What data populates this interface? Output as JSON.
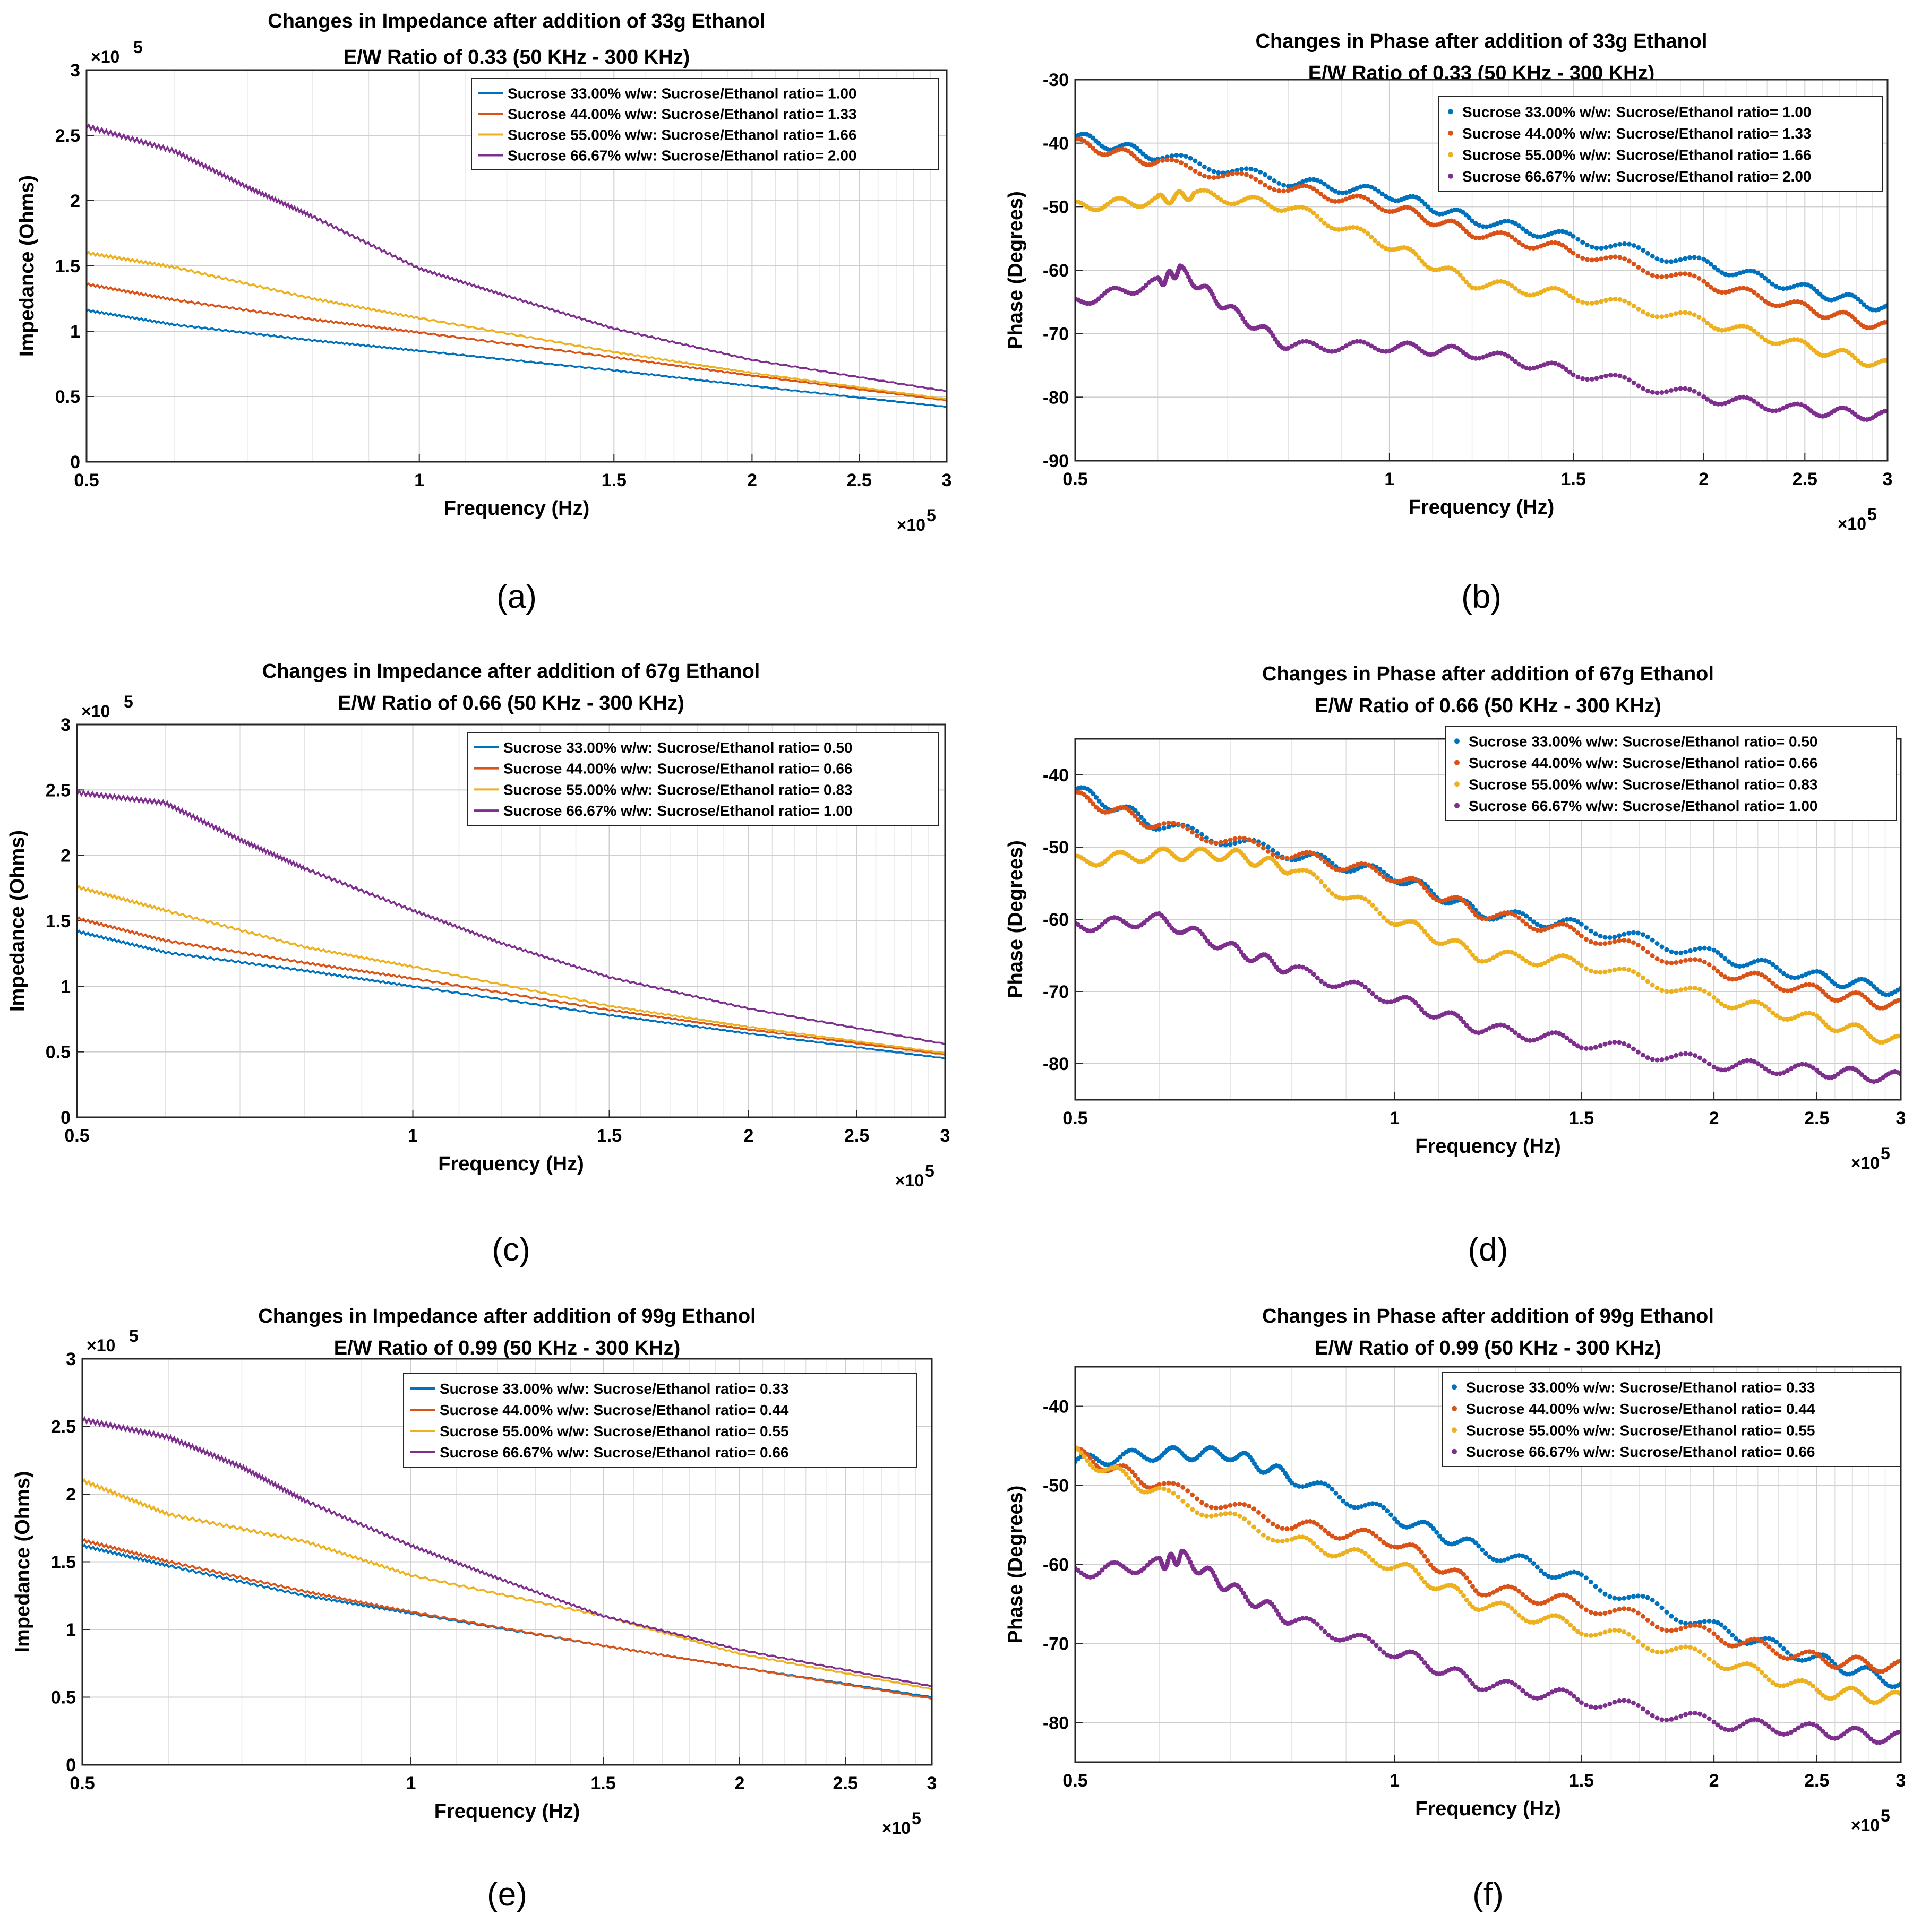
{
  "chart_data": [
    {
      "panel": "a",
      "type": "line",
      "caption": "(a)",
      "title_line1": "Changes in Impedance after addition of 33g Ethanol",
      "title_line2": "E/W Ratio of 0.33 (50 KHz - 300 KHz)",
      "xlabel": "Frequency (Hz)",
      "ylabel": "Impedance (Ohms)",
      "x_multiplier": "×10",
      "x_exponent": "5",
      "y_multiplier": "×10",
      "y_exponent": "5",
      "xscale": "log",
      "xlim": [
        0.5,
        3
      ],
      "ylim": [
        0,
        3
      ],
      "xticks": [
        0.5,
        1,
        1.5,
        2,
        2.5,
        3
      ],
      "xtick_labels": [
        "0.5",
        "1",
        "1.5",
        "2",
        "2.5",
        "3"
      ],
      "yticks": [
        0,
        0.5,
        1,
        1.5,
        2,
        2.5,
        3
      ],
      "ytick_labels": [
        "0",
        "0.5",
        "1",
        "1.5",
        "2",
        "2.5",
        "3"
      ],
      "legend_position": "top-right",
      "series": [
        {
          "name": "Sucrose 33.00% w/w: Sucrose/Ethanol ratio= 1.00",
          "color": "#0072BD",
          "x": [
            0.5,
            0.6,
            0.8,
            1.0,
            1.5,
            2.0,
            3.0
          ],
          "y": [
            1.16,
            1.05,
            0.93,
            0.85,
            0.7,
            0.58,
            0.42
          ]
        },
        {
          "name": "Sucrose 44.00% w/w: Sucrose/Ethanol ratio= 1.33",
          "color": "#D95319",
          "x": [
            0.5,
            0.6,
            0.8,
            1.0,
            1.5,
            2.0,
            3.0
          ],
          "y": [
            1.36,
            1.24,
            1.09,
            0.99,
            0.8,
            0.66,
            0.47
          ]
        },
        {
          "name": "Sucrose 55.00% w/w: Sucrose/Ethanol ratio= 1.66",
          "color": "#EDB120",
          "x": [
            0.5,
            0.6,
            0.8,
            1.0,
            1.5,
            2.0,
            3.0
          ],
          "y": [
            1.6,
            1.49,
            1.25,
            1.1,
            0.84,
            0.68,
            0.48
          ]
        },
        {
          "name": "Sucrose 66.67% w/w: Sucrose/Ethanol ratio= 2.00",
          "color": "#7E2F8E",
          "x": [
            0.5,
            0.6,
            0.7,
            0.8,
            1.0,
            1.2,
            1.5,
            2.0,
            3.0
          ],
          "y": [
            2.57,
            2.38,
            2.1,
            1.88,
            1.48,
            1.27,
            1.02,
            0.78,
            0.54
          ]
        }
      ]
    },
    {
      "panel": "b",
      "type": "scatter",
      "caption": "(b)",
      "title_line1": "Changes in Phase after addition of 33g Ethanol",
      "title_line2": "E/W Ratio of 0.33 (50 KHz - 300 KHz)",
      "xlabel": "Frequency (Hz)",
      "ylabel": "Phase (Degrees)",
      "x_multiplier": "×10",
      "x_exponent": "5",
      "xscale": "log",
      "xlim": [
        0.5,
        3
      ],
      "ylim": [
        -90,
        -30
      ],
      "xticks": [
        0.5,
        1,
        1.5,
        2,
        2.5,
        3
      ],
      "xtick_labels": [
        "0.5",
        "1",
        "1.5",
        "2",
        "2.5",
        "3"
      ],
      "yticks": [
        -90,
        -80,
        -70,
        -60,
        -50,
        -40,
        -30
      ],
      "ytick_labels": [
        "-90",
        "-80",
        "-70",
        "-60",
        "-50",
        "-40",
        "-30"
      ],
      "legend_position": "top-right",
      "series": [
        {
          "name": "Sucrose 33.00% w/w: Sucrose/Ethanol ratio= 1.00",
          "color": "#0072BD",
          "x": [
            0.5,
            0.6,
            0.8,
            1.0,
            1.2,
            1.5,
            2.0,
            2.5,
            3.0
          ],
          "y": [
            -39,
            -42,
            -46,
            -48,
            -52,
            -55,
            -59,
            -63,
            -66
          ]
        },
        {
          "name": "Sucrose 44.00% w/w: Sucrose/Ethanol ratio= 1.33",
          "color": "#D95319",
          "x": [
            0.5,
            0.6,
            0.8,
            1.0,
            1.2,
            1.5,
            2.0,
            2.5,
            3.0
          ],
          "y": [
            -40,
            -43,
            -47,
            -50,
            -54,
            -57,
            -62,
            -66,
            -69
          ]
        },
        {
          "name": "Sucrose 55.00% w/w: Sucrose/Ethanol ratio= 1.66",
          "color": "#EDB120",
          "x": [
            0.5,
            0.6,
            0.65,
            0.8,
            1.0,
            1.2,
            1.5,
            2.0,
            2.5,
            3.0
          ],
          "y": [
            -50,
            -49,
            -48,
            -50,
            -56,
            -62,
            -64,
            -68,
            -72,
            -75
          ]
        },
        {
          "name": "Sucrose 66.67% w/w: Sucrose/Ethanol ratio= 2.00",
          "color": "#7E2F8E",
          "x": [
            0.5,
            0.6,
            0.63,
            0.7,
            0.8,
            1.0,
            1.2,
            1.5,
            2.0,
            2.5,
            3.0
          ],
          "y": [
            -65,
            -62,
            -60,
            -66,
            -72,
            -72,
            -73,
            -76,
            -80,
            -82,
            -83
          ]
        }
      ]
    },
    {
      "panel": "c",
      "type": "line",
      "caption": "(c)",
      "title_line1": "Changes in Impedance after addition of 67g Ethanol",
      "title_line2": "E/W Ratio of 0.66 (50 KHz - 300 KHz)",
      "xlabel": "Frequency (Hz)",
      "ylabel": "Impedance (Ohms)",
      "x_multiplier": "×10",
      "x_exponent": "5",
      "y_multiplier": "×10",
      "y_exponent": "5",
      "xscale": "log",
      "xlim": [
        0.5,
        3
      ],
      "ylim": [
        0,
        3
      ],
      "xticks": [
        0.5,
        1,
        1.5,
        2,
        2.5,
        3
      ],
      "xtick_labels": [
        "0.5",
        "1",
        "1.5",
        "2",
        "2.5",
        "3"
      ],
      "yticks": [
        0,
        0.5,
        1,
        1.5,
        2,
        2.5,
        3
      ],
      "ytick_labels": [
        "0",
        "0.5",
        "1",
        "1.5",
        "2",
        "2.5",
        "3"
      ],
      "legend_position": "top-right",
      "series": [
        {
          "name": "Sucrose 33.00% w/w: Sucrose/Ethanol ratio= 0.50",
          "color": "#0072BD",
          "x": [
            0.5,
            0.6,
            0.8,
            1.0,
            1.5,
            2.0,
            3.0
          ],
          "y": [
            1.42,
            1.26,
            1.12,
            1.0,
            0.78,
            0.64,
            0.45
          ]
        },
        {
          "name": "Sucrose 44.00% w/w: Sucrose/Ethanol ratio= 0.66",
          "color": "#D95319",
          "x": [
            0.5,
            0.6,
            0.8,
            1.0,
            1.5,
            2.0,
            3.0
          ],
          "y": [
            1.52,
            1.35,
            1.18,
            1.06,
            0.82,
            0.67,
            0.48
          ]
        },
        {
          "name": "Sucrose 55.00% w/w: Sucrose/Ethanol ratio= 0.83",
          "color": "#EDB120",
          "x": [
            0.5,
            0.6,
            0.8,
            1.0,
            1.5,
            2.0,
            3.0
          ],
          "y": [
            1.76,
            1.58,
            1.3,
            1.15,
            0.85,
            0.69,
            0.49
          ]
        },
        {
          "name": "Sucrose 66.67% w/w: Sucrose/Ethanol ratio= 1.00",
          "color": "#7E2F8E",
          "x": [
            0.5,
            0.6,
            0.7,
            0.8,
            1.0,
            1.2,
            1.5,
            2.0,
            3.0
          ],
          "y": [
            2.48,
            2.4,
            2.12,
            1.9,
            1.58,
            1.33,
            1.07,
            0.83,
            0.56
          ]
        }
      ]
    },
    {
      "panel": "d",
      "type": "scatter",
      "caption": "(d)",
      "title_line1": "Changes in Phase after addition of 67g Ethanol",
      "title_line2": "E/W Ratio of 0.66 (50 KHz - 300 KHz)",
      "xlabel": "Frequency (Hz)",
      "ylabel": "Phase (Degrees)",
      "x_multiplier": "×10",
      "x_exponent": "5",
      "xscale": "log",
      "xlim": [
        0.5,
        3
      ],
      "ylim": [
        -85,
        -35
      ],
      "xticks": [
        0.5,
        1,
        1.5,
        2,
        2.5,
        3
      ],
      "xtick_labels": [
        "0.5",
        "1",
        "1.5",
        "2",
        "2.5",
        "3"
      ],
      "yticks": [
        -80,
        -70,
        -60,
        -50,
        -40
      ],
      "ytick_labels": [
        "-80",
        "-70",
        "-60",
        "-50",
        "-40"
      ],
      "legend_position": "top-right",
      "series": [
        {
          "name": "Sucrose 33.00% w/w: Sucrose/Ethanol ratio= 0.50",
          "color": "#0072BD",
          "x": [
            0.5,
            0.6,
            0.8,
            1.0,
            1.2,
            1.5,
            2.0,
            2.5,
            3.0
          ],
          "y": [
            -42,
            -47,
            -51,
            -54,
            -59,
            -61,
            -65,
            -68,
            -70
          ]
        },
        {
          "name": "Sucrose 44.00% w/w: Sucrose/Ethanol ratio= 0.66",
          "color": "#D95319",
          "x": [
            0.5,
            0.6,
            0.8,
            1.0,
            1.2,
            1.5,
            2.0,
            2.5,
            3.0
          ],
          "y": [
            -43,
            -47,
            -51,
            -54,
            -59,
            -62,
            -67,
            -70,
            -72
          ]
        },
        {
          "name": "Sucrose 55.00% w/w: Sucrose/Ethanol ratio= 0.83",
          "color": "#EDB120",
          "x": [
            0.5,
            0.6,
            0.7,
            0.8,
            1.0,
            1.2,
            1.5,
            2.0,
            2.5,
            3.0
          ],
          "y": [
            -52,
            -51,
            -51,
            -53,
            -60,
            -65,
            -66,
            -71,
            -74,
            -77
          ]
        },
        {
          "name": "Sucrose 66.67% w/w: Sucrose/Ethanol ratio= 1.00",
          "color": "#7E2F8E",
          "x": [
            0.5,
            0.6,
            0.7,
            0.8,
            1.0,
            1.2,
            1.5,
            2.0,
            2.5,
            3.0
          ],
          "y": [
            -61,
            -60,
            -64,
            -67,
            -71,
            -75,
            -77,
            -80,
            -81,
            -82
          ]
        }
      ]
    },
    {
      "panel": "e",
      "type": "line",
      "caption": "(e)",
      "title_line1": "Changes in Impedance after addition of 99g Ethanol",
      "title_line2": "E/W Ratio of 0.99 (50 KHz - 300 KHz)",
      "xlabel": "Frequency (Hz)",
      "ylabel": "Impedance (Ohms)",
      "x_multiplier": "×10",
      "x_exponent": "5",
      "y_multiplier": "×10",
      "y_exponent": "5",
      "xscale": "log",
      "xlim": [
        0.5,
        3
      ],
      "ylim": [
        0,
        3
      ],
      "xticks": [
        0.5,
        1,
        1.5,
        2,
        2.5,
        3
      ],
      "xtick_labels": [
        "0.5",
        "1",
        "1.5",
        "2",
        "2.5",
        "3"
      ],
      "yticks": [
        0,
        0.5,
        1,
        1.5,
        2,
        2.5,
        3
      ],
      "ytick_labels": [
        "0",
        "0.5",
        "1",
        "1.5",
        "2",
        "2.5",
        "3"
      ],
      "legend_position": "top-right",
      "series": [
        {
          "name": "Sucrose 33.00% w/w: Sucrose/Ethanol ratio= 0.33",
          "color": "#0072BD",
          "x": [
            0.5,
            0.6,
            0.8,
            1.0,
            1.5,
            2.0,
            3.0
          ],
          "y": [
            1.62,
            1.47,
            1.25,
            1.12,
            0.88,
            0.72,
            0.5
          ]
        },
        {
          "name": "Sucrose 44.00% w/w: Sucrose/Ethanol ratio= 0.44",
          "color": "#D95319",
          "x": [
            0.5,
            0.6,
            0.8,
            1.0,
            1.5,
            2.0,
            3.0
          ],
          "y": [
            1.66,
            1.5,
            1.28,
            1.13,
            0.88,
            0.72,
            0.49
          ]
        },
        {
          "name": "Sucrose 55.00% w/w: Sucrose/Ethanol ratio= 0.55",
          "color": "#EDB120",
          "x": [
            0.5,
            0.6,
            0.8,
            1.0,
            1.5,
            2.0,
            3.0
          ],
          "y": [
            2.1,
            1.85,
            1.65,
            1.4,
            1.1,
            0.82,
            0.56
          ]
        },
        {
          "name": "Sucrose 66.67% w/w: Sucrose/Ethanol ratio= 0.66",
          "color": "#7E2F8E",
          "x": [
            0.5,
            0.6,
            0.7,
            0.8,
            1.0,
            1.2,
            1.5,
            2.0,
            3.0
          ],
          "y": [
            2.55,
            2.42,
            2.2,
            1.95,
            1.62,
            1.38,
            1.1,
            0.85,
            0.58
          ]
        }
      ]
    },
    {
      "panel": "f",
      "type": "scatter",
      "caption": "(f)",
      "title_line1": "Changes in Phase after addition of 99g Ethanol",
      "title_line2": "E/W Ratio of 0.99 (50 KHz - 300 KHz)",
      "xlabel": "Frequency (Hz)",
      "ylabel": "Phase (Degrees)",
      "x_multiplier": "×10",
      "x_exponent": "5",
      "xscale": "log",
      "xlim": [
        0.5,
        3
      ],
      "ylim": [
        -85,
        -35
      ],
      "xticks": [
        0.5,
        1,
        1.5,
        2,
        2.5,
        3
      ],
      "xtick_labels": [
        "0.5",
        "1",
        "1.5",
        "2",
        "2.5",
        "3"
      ],
      "yticks": [
        -80,
        -70,
        -60,
        -50,
        -40
      ],
      "ytick_labels": [
        "-80",
        "-70",
        "-60",
        "-50",
        "-40"
      ],
      "legend_position": "top-right",
      "series": [
        {
          "name": "Sucrose 33.00% w/w: Sucrose/Ethanol ratio= 0.33",
          "color": "#0072BD",
          "x": [
            0.5,
            0.6,
            0.7,
            0.8,
            1.0,
            1.2,
            1.5,
            2.0,
            2.5,
            3.0
          ],
          "y": [
            -47,
            -46,
            -46,
            -49,
            -54,
            -58,
            -62,
            -68,
            -72,
            -75
          ]
        },
        {
          "name": "Sucrose 44.00% w/w: Sucrose/Ethanol ratio= 0.44",
          "color": "#D95319",
          "x": [
            0.5,
            0.6,
            0.8,
            1.0,
            1.2,
            1.5,
            2.0,
            2.5,
            3.0
          ],
          "y": [
            -46,
            -50,
            -55,
            -57,
            -63,
            -65,
            -69,
            -72,
            -73
          ]
        },
        {
          "name": "Sucrose 55.00% w/w: Sucrose/Ethanol ratio= 0.55",
          "color": "#EDB120",
          "x": [
            0.5,
            0.6,
            0.8,
            1.0,
            1.2,
            1.5,
            2.0,
            2.5,
            3.0
          ],
          "y": [
            -46,
            -51,
            -57,
            -60,
            -65,
            -68,
            -72,
            -76,
            -77
          ]
        },
        {
          "name": "Sucrose 66.67% w/w: Sucrose/Ethanol ratio= 0.66",
          "color": "#7E2F8E",
          "x": [
            0.5,
            0.6,
            0.63,
            0.7,
            0.8,
            1.0,
            1.2,
            1.5,
            2.0,
            2.5,
            3.0
          ],
          "y": [
            -61,
            -60,
            -59,
            -63,
            -67,
            -71,
            -75,
            -77,
            -80,
            -81,
            -82
          ]
        }
      ]
    }
  ]
}
